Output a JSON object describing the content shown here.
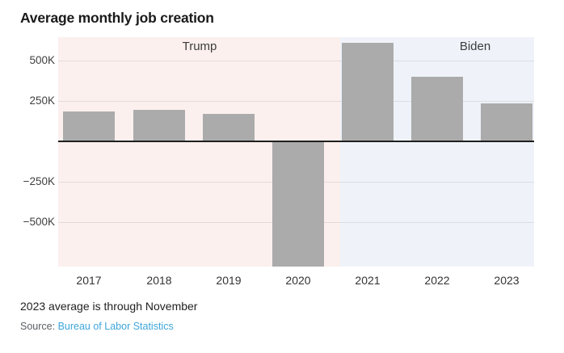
{
  "title": "Average monthly job creation",
  "footer": {
    "note": "2023 average is through November",
    "source_label": "Source:",
    "source_link": "Bureau of Labor Statistics"
  },
  "colors": {
    "trump_band": "#fbf0ee",
    "biden_band": "#eff3f9",
    "bar": "#ababab",
    "zero_line": "#1f1f1f",
    "source_link": "#3ea6da",
    "title_text": "#1a1a1a"
  },
  "chart_data": {
    "type": "bar",
    "title": "Average monthly job creation",
    "categories": [
      "2017",
      "2018",
      "2019",
      "2020",
      "2021",
      "2022",
      "2023"
    ],
    "values": [
      181,
      193,
      168,
      -774,
      606,
      399,
      232
    ],
    "value_unit": "thousands of jobs per month (K)",
    "xlabel": "",
    "ylabel": "",
    "y_ticks": [
      500,
      250,
      -250,
      -500
    ],
    "y_tick_labels": [
      "500K",
      "250K",
      "−250K",
      "−500K"
    ],
    "ylim": [
      -790,
      640
    ],
    "grid": true,
    "legend_position": "none",
    "regions": [
      {
        "label": "Trump",
        "categories": [
          "2017",
          "2018",
          "2019",
          "2020"
        ],
        "color": "#fbf0ee"
      },
      {
        "label": "Biden",
        "categories": [
          "2021",
          "2022",
          "2023"
        ],
        "color": "#eff3f9"
      }
    ],
    "annotations": [
      "2023 average is through November"
    ]
  }
}
